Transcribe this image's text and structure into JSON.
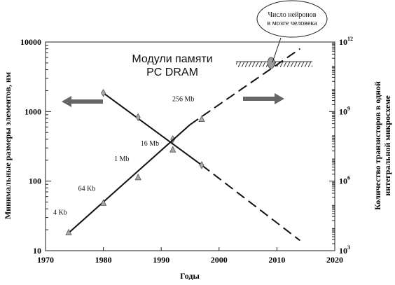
{
  "chart_data": {
    "type": "line",
    "title_line1": "Модули памяти",
    "title_line2": "PC DRAM",
    "xlabel": "Годы",
    "ylabel_left": "Минимальные размеры элементов, нм",
    "ylabel_right_line1": "Количество транзисторов в одной",
    "ylabel_right_line2": "интегральной микросхеме",
    "xlim": [
      1970,
      2020
    ],
    "x_ticks": [
      "1970",
      "1980",
      "1990",
      "2000",
      "2010",
      "2020"
    ],
    "ylim_left_log": [
      10,
      10000
    ],
    "y_ticks_left": [
      "10",
      "100",
      "1000",
      "10000"
    ],
    "ylim_right_log_exp": [
      3,
      12
    ],
    "y_ticks_right": [
      {
        "base": "10",
        "exp": "3"
      },
      {
        "base": "10",
        "exp": "6"
      },
      {
        "base": "10",
        "exp": "9"
      },
      {
        "base": "10",
        "exp": "12"
      }
    ],
    "series": [
      {
        "axis": "left",
        "solid_line": [
          [
            1980,
            1850
          ],
          [
            1997,
            170
          ]
        ],
        "dashed_line": [
          [
            1997,
            170
          ],
          [
            2014,
            14
          ]
        ],
        "points": [
          [
            1980,
            1850
          ],
          [
            1986,
            830
          ],
          [
            1992,
            400
          ],
          [
            1997,
            170
          ]
        ]
      },
      {
        "axis": "right",
        "solid_line": [
          [
            1974,
            18
          ],
          [
            1995,
            650
          ]
        ],
        "dashed_line": [
          [
            1995,
            650
          ],
          [
            2014,
            8000
          ]
        ],
        "points": [
          [
            1974,
            18
          ],
          [
            1980,
            48
          ],
          [
            1986,
            112
          ],
          [
            1992,
            280
          ],
          [
            1997,
            770
          ]
        ]
      }
    ],
    "data_labels": [
      {
        "text": "4 Kb",
        "x": 1974,
        "y": 18
      },
      {
        "text": "64 Kb",
        "x": 1980,
        "y": 48
      },
      {
        "text": "1 Mb",
        "x": 1986,
        "y": 112
      },
      {
        "text": "16 Mb",
        "x": 1992,
        "y": 280
      },
      {
        "text": "256 Mb",
        "x": 1997,
        "y": 770
      }
    ],
    "neuron_marker": {
      "x": 2009,
      "y": 5000
    },
    "callout_line1": "Число нейронов",
    "callout_line2": "в мозге человека"
  }
}
